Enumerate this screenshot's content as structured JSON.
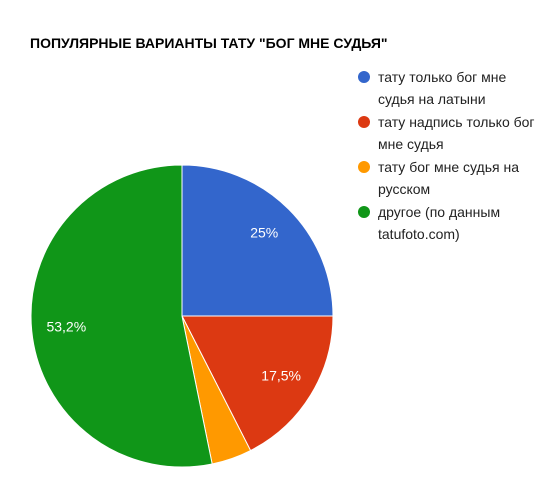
{
  "chart_data": {
    "type": "pie",
    "title": "ПОПУЛЯРНЫЕ ВАРИАНТЫ ТАТУ \"БОГ МНЕ СУДЬЯ\"",
    "categories": [
      "тату только бог мне судья на латыни",
      "тату надпись только бог мне судья",
      "тату бог мне судья на русском",
      "другое (по данным tatufoto.com)"
    ],
    "values": [
      25,
      17.5,
      4.3,
      53.2
    ],
    "value_labels": [
      "25%",
      "17,5%",
      null,
      "53,2%"
    ],
    "colors": [
      "#3366cc",
      "#dc3912",
      "#ff9900",
      "#109618"
    ],
    "legend": "right"
  }
}
